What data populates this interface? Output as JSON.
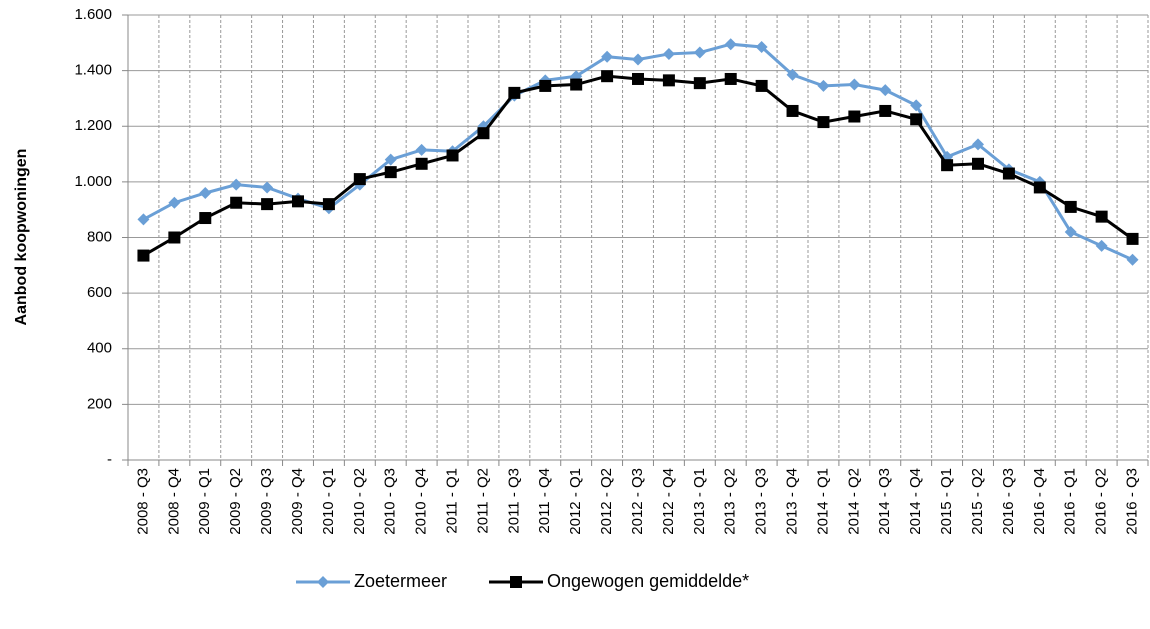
{
  "chart_data": {
    "type": "line",
    "y_label": "Aanbod koopwoningen",
    "categories": [
      "2008 - Q3",
      "2008 - Q4",
      "2009 - Q1",
      "2009 - Q2",
      "2009 - Q3",
      "2009 - Q4",
      "2010 - Q1",
      "2010 - Q2",
      "2010 - Q3",
      "2010 - Q4",
      "2011 - Q1",
      "2011 - Q2",
      "2011 - Q3",
      "2011 - Q4",
      "2012 - Q1",
      "2012 - Q2",
      "2012 - Q3",
      "2012 - Q4",
      "2013 - Q1",
      "2013 - Q2",
      "2013 - Q3",
      "2013 - Q4",
      "2014 - Q1",
      "2014 - Q2",
      "2014 - Q3",
      "2014 - Q4",
      "2015 - Q1",
      "2015 - Q2",
      "2016 - Q3",
      "2016 - Q4",
      "2016 - Q1",
      "2016 - Q2",
      "2016 - Q3"
    ],
    "series": [
      {
        "name": "Zoetermeer",
        "color": "#6a9fd6",
        "marker": "diamond",
        "values": [
          865,
          925,
          960,
          990,
          980,
          940,
          905,
          990,
          1080,
          1115,
          1110,
          1200,
          1310,
          1365,
          1380,
          1450,
          1440,
          1460,
          1465,
          1495,
          1485,
          1385,
          1345,
          1350,
          1330,
          1275,
          1090,
          1135,
          1045,
          1000,
          820,
          770,
          720
        ]
      },
      {
        "name": "Ongewogen gemiddelde*",
        "color": "#000000",
        "marker": "square",
        "values": [
          735,
          800,
          870,
          925,
          920,
          930,
          920,
          1010,
          1035,
          1065,
          1095,
          1175,
          1320,
          1345,
          1350,
          1380,
          1370,
          1365,
          1355,
          1370,
          1345,
          1255,
          1215,
          1235,
          1255,
          1225,
          1060,
          1065,
          1030,
          980,
          910,
          875,
          795
        ]
      }
    ],
    "ylim": [
      0,
      1600
    ],
    "yticks": [
      {
        "value": 0,
        "label": "-"
      },
      200,
      400,
      600,
      800,
      {
        "value": 1000,
        "label": "1.000"
      },
      {
        "value": 1200,
        "label": "1.200"
      },
      {
        "value": 1400,
        "label": "1.400"
      },
      {
        "value": 1600,
        "label": "1.600"
      }
    ],
    "grid": true,
    "legend": "bottom"
  }
}
